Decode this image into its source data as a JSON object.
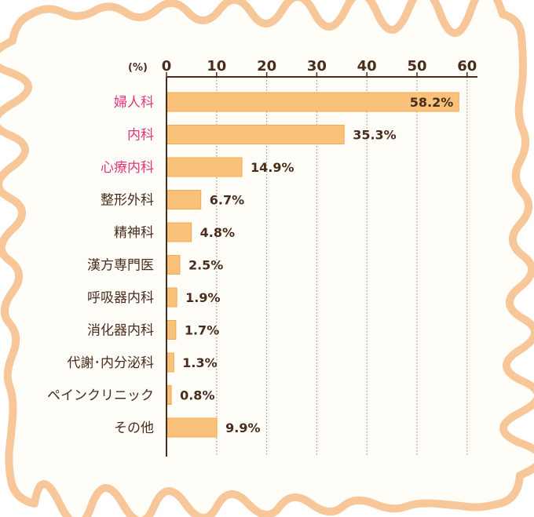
{
  "chart_data": {
    "type": "bar",
    "orientation": "horizontal",
    "unit_label": "(%)",
    "categories": [
      "婦人科",
      "内科",
      "心療内科",
      "整形外科",
      "精神科",
      "漢方専門医",
      "呼吸器内科",
      "消化器内科",
      "代謝･内分泌科",
      "ペインクリニック",
      "その他"
    ],
    "values": [
      58.2,
      35.3,
      14.9,
      6.7,
      4.8,
      2.5,
      1.9,
      1.7,
      1.3,
      0.8,
      9.9
    ],
    "value_labels": [
      "58.2%",
      "35.3%",
      "14.9%",
      "6.7%",
      "4.8%",
      "2.5%",
      "1.9%",
      "1.7%",
      "1.3%",
      "0.8%",
      "9.9%"
    ],
    "highlighted_categories": [
      "婦人科",
      "内科",
      "心療内科"
    ],
    "xlim": [
      0,
      60
    ],
    "ticks": [
      0,
      10,
      20,
      30,
      40,
      50,
      60
    ],
    "tick_labels": [
      "0",
      "10",
      "20",
      "30",
      "40",
      "50",
      "60"
    ],
    "grid": true,
    "colors": {
      "bar": "#f9c27a",
      "bar_edge": "#f2a94f",
      "highlight_text": "#e0357a",
      "text": "#4a2c1c",
      "frame": "#f7c79a",
      "grid": "#8a8a6a"
    }
  }
}
